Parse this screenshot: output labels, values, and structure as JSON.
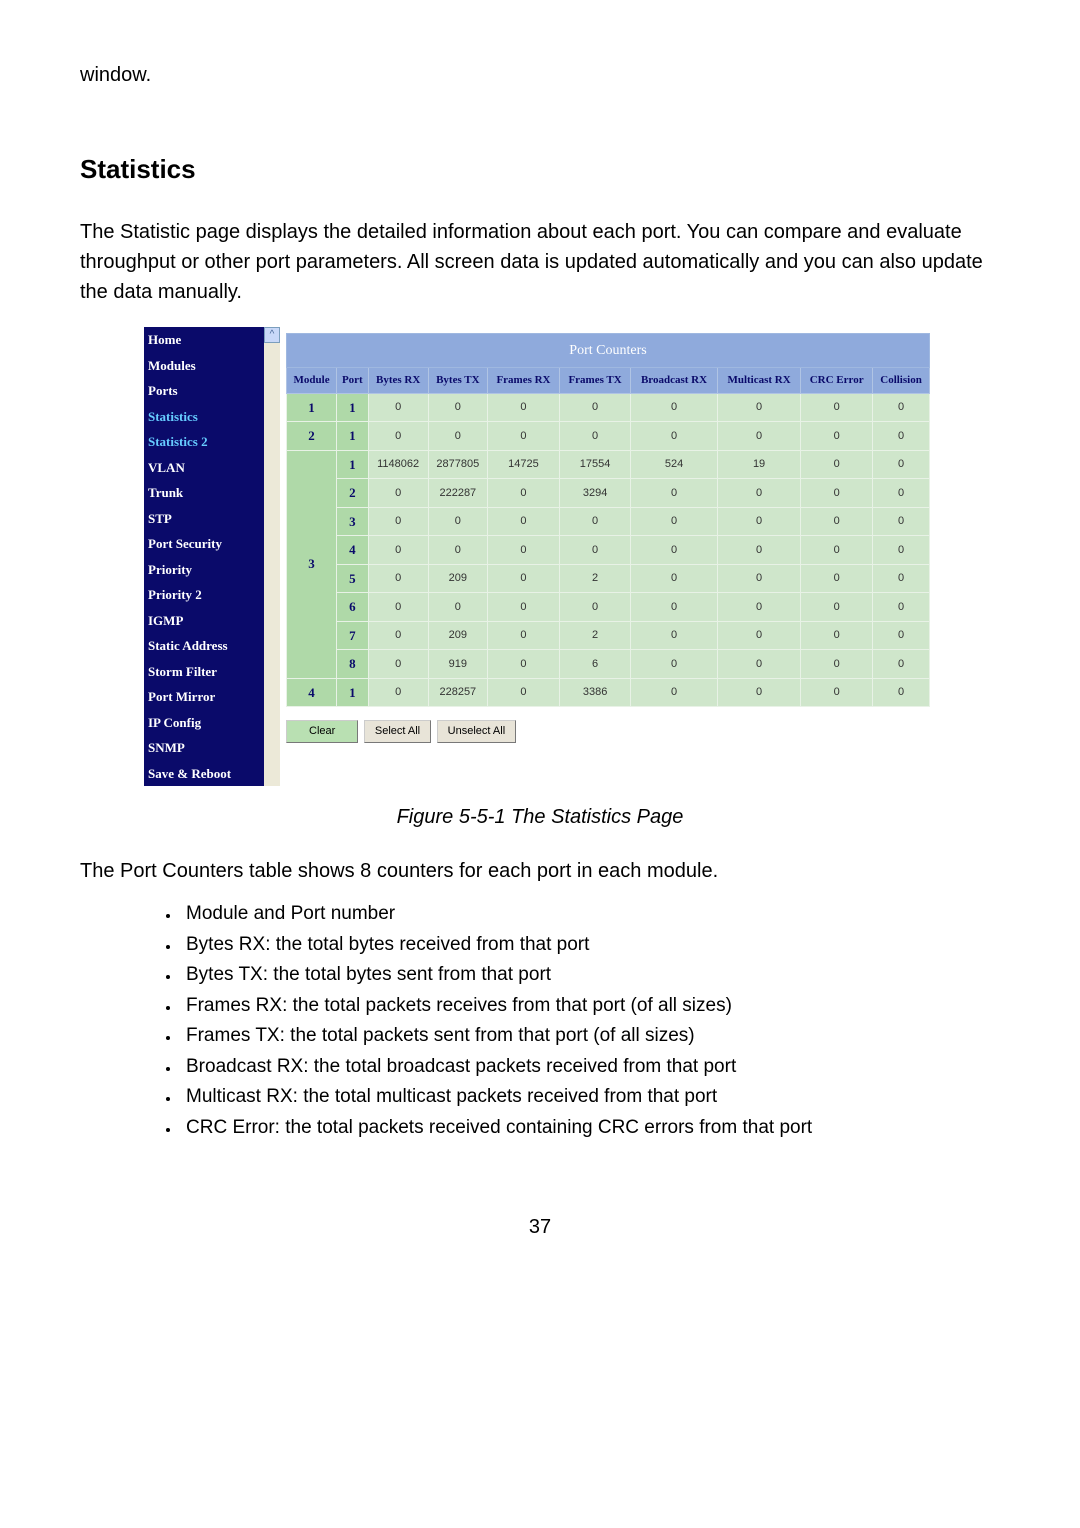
{
  "top_word": "window.",
  "heading": "Statistics",
  "intro": "The Statistic page displays the detailed information about each port. You can compare and evaluate throughput or other port parameters. All screen data is updated automatically and you can also update the data manually.",
  "caption": "Figure 5-5-1 The Statistics Page",
  "after_fig": "The Port Counters table shows 8 counters for each port in each module.",
  "bullets": [
    "Module and Port number",
    "Bytes RX: the total bytes received from that port",
    "Bytes TX: the total bytes sent from that port",
    "Frames RX: the total packets receives from that port (of all sizes)",
    "Frames TX: the total packets sent from that port (of all sizes)",
    "Broadcast RX: the total broadcast packets received from that port",
    "Multicast RX: the total multicast packets received from that port",
    "CRC Error: the total packets received containing CRC errors from that port"
  ],
  "page_number": "37",
  "sidebar": {
    "items": [
      {
        "label": "Home",
        "hl": false
      },
      {
        "label": "Modules",
        "hl": false
      },
      {
        "label": "Ports",
        "hl": false
      },
      {
        "label": "Statistics",
        "hl": true
      },
      {
        "label": "Statistics 2",
        "hl": true
      },
      {
        "label": "VLAN",
        "hl": false
      },
      {
        "label": "Trunk",
        "hl": false
      },
      {
        "label": "STP",
        "hl": false
      },
      {
        "label": "Port Security",
        "hl": false
      },
      {
        "label": "Priority",
        "hl": false
      },
      {
        "label": "Priority 2",
        "hl": false
      },
      {
        "label": "IGMP",
        "hl": false
      },
      {
        "label": "Static Address",
        "hl": false
      },
      {
        "label": "Storm Filter",
        "hl": false
      },
      {
        "label": "Port Mirror",
        "hl": false
      },
      {
        "label": "IP Config",
        "hl": false
      },
      {
        "label": "SNMP",
        "hl": false
      },
      {
        "label": "Save & Reboot",
        "hl": false
      }
    ]
  },
  "table": {
    "title": "Port Counters",
    "columns": [
      "Module",
      "Port",
      "Bytes RX",
      "Bytes TX",
      "Frames RX",
      "Frames TX",
      "Broadcast RX",
      "Multicast RX",
      "CRC Error",
      "Collision"
    ],
    "rows": [
      {
        "module": "1",
        "module_rowspan": 1,
        "port": "1",
        "vals": [
          "0",
          "0",
          "0",
          "0",
          "0",
          "0",
          "0",
          "0"
        ]
      },
      {
        "module": "2",
        "module_rowspan": 1,
        "port": "1",
        "vals": [
          "0",
          "0",
          "0",
          "0",
          "0",
          "0",
          "0",
          "0"
        ]
      },
      {
        "module": "3",
        "module_rowspan": 8,
        "port": "1",
        "vals": [
          "1148062",
          "2877805",
          "14725",
          "17554",
          "524",
          "19",
          "0",
          "0"
        ]
      },
      {
        "module": "",
        "module_rowspan": 0,
        "port": "2",
        "vals": [
          "0",
          "222287",
          "0",
          "3294",
          "0",
          "0",
          "0",
          "0"
        ]
      },
      {
        "module": "",
        "module_rowspan": 0,
        "port": "3",
        "vals": [
          "0",
          "0",
          "0",
          "0",
          "0",
          "0",
          "0",
          "0"
        ]
      },
      {
        "module": "",
        "module_rowspan": 0,
        "port": "4",
        "vals": [
          "0",
          "0",
          "0",
          "0",
          "0",
          "0",
          "0",
          "0"
        ]
      },
      {
        "module": "",
        "module_rowspan": 0,
        "port": "5",
        "vals": [
          "0",
          "209",
          "0",
          "2",
          "0",
          "0",
          "0",
          "0"
        ]
      },
      {
        "module": "",
        "module_rowspan": 0,
        "port": "6",
        "vals": [
          "0",
          "0",
          "0",
          "0",
          "0",
          "0",
          "0",
          "0"
        ]
      },
      {
        "module": "",
        "module_rowspan": 0,
        "port": "7",
        "vals": [
          "0",
          "209",
          "0",
          "2",
          "0",
          "0",
          "0",
          "0"
        ]
      },
      {
        "module": "",
        "module_rowspan": 0,
        "port": "8",
        "vals": [
          "0",
          "919",
          "0",
          "6",
          "0",
          "0",
          "0",
          "0"
        ]
      },
      {
        "module": "4",
        "module_rowspan": 1,
        "port": "1",
        "vals": [
          "0",
          "228257",
          "0",
          "3386",
          "0",
          "0",
          "0",
          "0"
        ]
      }
    ],
    "buttons": {
      "clear": "Clear",
      "select_all": "Select All",
      "unselect_all": "Unselect All"
    }
  },
  "colors": {
    "sidebar_bg": "#0a0a6a",
    "th_bg": "#8faadc",
    "row_bg": "#cfe6cb",
    "modport_bg": "#afd9a8"
  }
}
